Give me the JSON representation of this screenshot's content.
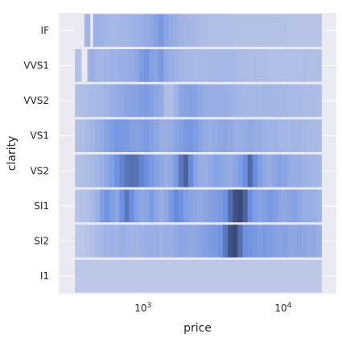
{
  "chart_data": {
    "type": "heatmap",
    "xlabel": "price",
    "ylabel": "clarity",
    "x_scale": "log",
    "xlim": [
      250,
      24000
    ],
    "x_ticks": [
      {
        "base": "10",
        "exponent": "3",
        "value": 1000
      },
      {
        "base": "10",
        "exponent": "4",
        "value": 10000
      }
    ],
    "y_categories": [
      "IF",
      "VVS1",
      "VVS2",
      "VS1",
      "VS2",
      "SI1",
      "SI2",
      "I1"
    ],
    "x_range": [
      326,
      18823
    ],
    "bins": 50,
    "grid": true,
    "colors": {
      "background": "#eaeaf2",
      "grid": "#ffffff",
      "low": "#c3cbe8",
      "mid": "#6a8fe0",
      "high": "#3a4a78"
    },
    "density_rows": [
      {
        "clarity": "IF",
        "empty_x": [
          [
            326,
            380
          ],
          [
            420,
            440
          ]
        ],
        "values": [
          0.0,
          0.08,
          0.22,
          0.28,
          0.26,
          0.24,
          0.22,
          0.2,
          0.2,
          0.22,
          0.22,
          0.24,
          0.26,
          0.28,
          0.32,
          0.36,
          0.42,
          0.52,
          0.38,
          0.32,
          0.28,
          0.24,
          0.22,
          0.2,
          0.18,
          0.16,
          0.14,
          0.12,
          0.12,
          0.12,
          0.12,
          0.12,
          0.1,
          0.1,
          0.1,
          0.1,
          0.1,
          0.1,
          0.1,
          0.1,
          0.1,
          0.1,
          0.1,
          0.08,
          0.08,
          0.08,
          0.08,
          0.08,
          0.08,
          0.08
        ]
      },
      {
        "clarity": "VVS1",
        "empty_x": [
          [
            365,
            400
          ]
        ],
        "values": [
          0.1,
          0.06,
          0.22,
          0.28,
          0.22,
          0.2,
          0.24,
          0.26,
          0.26,
          0.28,
          0.3,
          0.32,
          0.36,
          0.48,
          0.54,
          0.44,
          0.38,
          0.5,
          0.34,
          0.3,
          0.26,
          0.22,
          0.2,
          0.2,
          0.18,
          0.18,
          0.18,
          0.2,
          0.2,
          0.2,
          0.2,
          0.2,
          0.18,
          0.16,
          0.16,
          0.14,
          0.16,
          0.14,
          0.14,
          0.12,
          0.12,
          0.12,
          0.12,
          0.12,
          0.12,
          0.12,
          0.14,
          0.12,
          0.12,
          0.12
        ]
      },
      {
        "clarity": "VVS2",
        "values": [
          0.12,
          0.14,
          0.16,
          0.18,
          0.18,
          0.2,
          0.24,
          0.28,
          0.32,
          0.34,
          0.38,
          0.4,
          0.42,
          0.46,
          0.48,
          0.44,
          0.36,
          0.32,
          0.14,
          0.12,
          0.24,
          0.36,
          0.42,
          0.44,
          0.4,
          0.34,
          0.3,
          0.28,
          0.28,
          0.3,
          0.3,
          0.26,
          0.24,
          0.22,
          0.2,
          0.2,
          0.2,
          0.2,
          0.22,
          0.22,
          0.2,
          0.2,
          0.2,
          0.18,
          0.18,
          0.18,
          0.16,
          0.16,
          0.16,
          0.14
        ]
      },
      {
        "clarity": "VS1",
        "values": [
          0.12,
          0.14,
          0.18,
          0.22,
          0.28,
          0.32,
          0.4,
          0.46,
          0.52,
          0.5,
          0.48,
          0.44,
          0.42,
          0.44,
          0.48,
          0.42,
          0.36,
          0.3,
          0.28,
          0.32,
          0.38,
          0.44,
          0.5,
          0.52,
          0.46,
          0.38,
          0.32,
          0.3,
          0.32,
          0.36,
          0.38,
          0.34,
          0.3,
          0.28,
          0.3,
          0.34,
          0.32,
          0.28,
          0.26,
          0.24,
          0.24,
          0.22,
          0.22,
          0.2,
          0.22,
          0.22,
          0.2,
          0.18,
          0.18,
          0.16
        ]
      },
      {
        "clarity": "VS2",
        "values": [
          0.1,
          0.12,
          0.14,
          0.18,
          0.22,
          0.28,
          0.36,
          0.46,
          0.58,
          0.66,
          0.74,
          0.78,
          0.76,
          0.66,
          0.58,
          0.5,
          0.42,
          0.36,
          0.3,
          0.34,
          0.5,
          0.74,
          0.86,
          0.62,
          0.4,
          0.3,
          0.28,
          0.34,
          0.4,
          0.38,
          0.34,
          0.32,
          0.38,
          0.46,
          0.6,
          0.82,
          0.62,
          0.44,
          0.34,
          0.3,
          0.36,
          0.42,
          0.38,
          0.32,
          0.3,
          0.28,
          0.26,
          0.24,
          0.22,
          0.2
        ]
      },
      {
        "clarity": "SI1",
        "values": [
          0.08,
          0.1,
          0.12,
          0.18,
          0.26,
          0.44,
          0.56,
          0.46,
          0.4,
          0.58,
          0.74,
          0.6,
          0.44,
          0.36,
          0.4,
          0.48,
          0.38,
          0.3,
          0.36,
          0.5,
          0.62,
          0.56,
          0.46,
          0.4,
          0.36,
          0.34,
          0.38,
          0.42,
          0.46,
          0.5,
          0.58,
          0.78,
          0.96,
          1.0,
          0.86,
          0.6,
          0.46,
          0.4,
          0.44,
          0.5,
          0.46,
          0.38,
          0.34,
          0.38,
          0.42,
          0.36,
          0.3,
          0.3,
          0.28,
          0.24
        ]
      },
      {
        "clarity": "SI2",
        "values": [
          0.04,
          0.06,
          0.08,
          0.12,
          0.16,
          0.2,
          0.24,
          0.26,
          0.24,
          0.28,
          0.26,
          0.24,
          0.24,
          0.26,
          0.28,
          0.3,
          0.28,
          0.26,
          0.28,
          0.3,
          0.34,
          0.38,
          0.36,
          0.34,
          0.36,
          0.4,
          0.44,
          0.48,
          0.5,
          0.56,
          0.74,
          0.96,
          1.0,
          0.78,
          0.6,
          0.54,
          0.5,
          0.46,
          0.5,
          0.46,
          0.42,
          0.4,
          0.42,
          0.38,
          0.36,
          0.38,
          0.36,
          0.32,
          0.34,
          0.3
        ]
      },
      {
        "clarity": "I1",
        "values": [
          0.04,
          0.04,
          0.04,
          0.04,
          0.04,
          0.04,
          0.04,
          0.04,
          0.04,
          0.04,
          0.04,
          0.04,
          0.04,
          0.04,
          0.04,
          0.04,
          0.04,
          0.04,
          0.04,
          0.04,
          0.04,
          0.04,
          0.04,
          0.04,
          0.04,
          0.04,
          0.04,
          0.04,
          0.04,
          0.04,
          0.04,
          0.04,
          0.04,
          0.04,
          0.04,
          0.04,
          0.04,
          0.04,
          0.04,
          0.04,
          0.04,
          0.04,
          0.04,
          0.04,
          0.04,
          0.04,
          0.04,
          0.04,
          0.04,
          0.04
        ]
      }
    ]
  }
}
